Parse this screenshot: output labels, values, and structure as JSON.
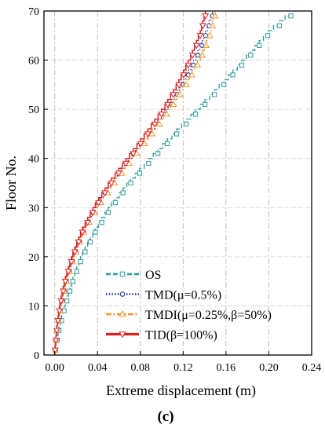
{
  "chart_data": {
    "type": "line",
    "xlabel": "Extreme displacement (m)",
    "ylabel": "Floor No.",
    "panel_label": "(c)",
    "xlim": [
      -0.01,
      0.24
    ],
    "ylim": [
      0,
      70
    ],
    "xticks": [
      "0.00",
      "0.04",
      "0.08",
      "0.12",
      "0.16",
      "0.20",
      "0.24"
    ],
    "xtick_values": [
      0.0,
      0.04,
      0.08,
      0.12,
      0.16,
      0.2,
      0.24
    ],
    "yticks": [
      "0",
      "10",
      "20",
      "30",
      "40",
      "50",
      "60",
      "70"
    ],
    "ytick_values": [
      0,
      10,
      20,
      30,
      40,
      50,
      60,
      70
    ],
    "grid": true,
    "legend_position": "lower-right",
    "series": [
      {
        "name": "OS",
        "color": "#2a9a9a",
        "marker": "square",
        "line": "dash",
        "points": [
          [
            0,
            0
          ],
          [
            0.004,
            5
          ],
          [
            0.01,
            10
          ],
          [
            0.017,
            15
          ],
          [
            0.026,
            20
          ],
          [
            0.038,
            25
          ],
          [
            0.053,
            30
          ],
          [
            0.071,
            35
          ],
          [
            0.092,
            40
          ],
          [
            0.114,
            45
          ],
          [
            0.136,
            50
          ],
          [
            0.158,
            55
          ],
          [
            0.179,
            60
          ],
          [
            0.199,
            65
          ],
          [
            0.226,
            70
          ]
        ]
      },
      {
        "name": "TMD(μ=0.5%)",
        "color": "#1a2fb0",
        "marker": "circle",
        "line": "dot",
        "points": [
          [
            0,
            0
          ],
          [
            0.002,
            5
          ],
          [
            0.006,
            10
          ],
          [
            0.011,
            15
          ],
          [
            0.018,
            20
          ],
          [
            0.027,
            25
          ],
          [
            0.039,
            30
          ],
          [
            0.055,
            35
          ],
          [
            0.072,
            40
          ],
          [
            0.09,
            45
          ],
          [
            0.106,
            50
          ],
          [
            0.12,
            55
          ],
          [
            0.132,
            60
          ],
          [
            0.141,
            65
          ],
          [
            0.149,
            70
          ]
        ]
      },
      {
        "name": "TMDI(μ=0.25%,β=50%)",
        "color": "#f0942e",
        "marker": "triangle",
        "line": "dashdot",
        "points": [
          [
            0,
            0
          ],
          [
            0.002,
            5
          ],
          [
            0.006,
            10
          ],
          [
            0.011,
            15
          ],
          [
            0.018,
            20
          ],
          [
            0.027,
            25
          ],
          [
            0.04,
            30
          ],
          [
            0.056,
            35
          ],
          [
            0.073,
            40
          ],
          [
            0.091,
            45
          ],
          [
            0.108,
            50
          ],
          [
            0.123,
            55
          ],
          [
            0.136,
            60
          ],
          [
            0.145,
            65
          ],
          [
            0.151,
            70
          ]
        ]
      },
      {
        "name": "TID(β=100%)",
        "color": "#e02020",
        "marker": "triangle-down",
        "line": "solid",
        "points": [
          [
            0,
            0
          ],
          [
            0.002,
            5
          ],
          [
            0.005,
            10
          ],
          [
            0.01,
            15
          ],
          [
            0.017,
            20
          ],
          [
            0.026,
            25
          ],
          [
            0.038,
            30
          ],
          [
            0.053,
            35
          ],
          [
            0.07,
            40
          ],
          [
            0.087,
            45
          ],
          [
            0.103,
            50
          ],
          [
            0.116,
            55
          ],
          [
            0.127,
            60
          ],
          [
            0.136,
            65
          ],
          [
            0.142,
            70
          ]
        ]
      }
    ]
  }
}
